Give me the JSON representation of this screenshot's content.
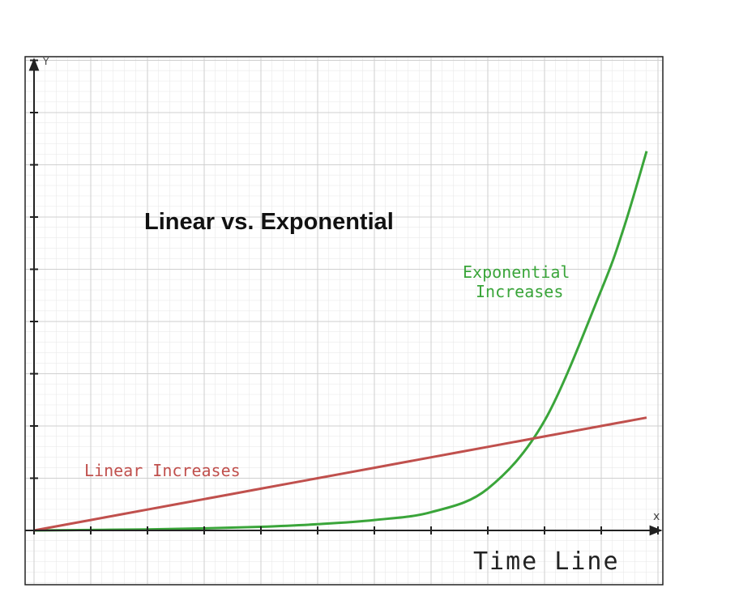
{
  "chart_data": {
    "type": "line",
    "title": "Linear vs. Exponential",
    "x_label": "Time Line",
    "x_axis_name": "x",
    "y_axis_name": "Y",
    "annotations": [
      [
        "Exponential",
        "Increases"
      ],
      [
        "Linear Increases"
      ]
    ],
    "x": [
      0,
      1,
      2,
      3,
      4,
      5,
      6,
      7,
      8,
      9,
      10,
      10.4,
      10.8
    ],
    "series": [
      {
        "color": "#3aa53a",
        "values": [
          0,
          0.01,
          0.02,
          0.04,
          0.07,
          0.12,
          0.2,
          0.35,
          0.8,
          2.1,
          4.6,
          5.8,
          7.26
        ]
      },
      {
        "color": "#c0504d",
        "values": [
          0,
          0.2,
          0.4,
          0.6,
          0.8,
          1.0,
          1.2,
          1.4,
          1.6,
          1.8,
          2.0,
          2.08,
          2.16
        ]
      }
    ],
    "xlim": [
      0,
      11.05
    ],
    "ylim": [
      0,
      9.04
    ],
    "xticks": [
      0,
      1,
      2,
      3,
      4,
      5,
      6,
      7,
      8,
      9,
      10,
      11
    ],
    "yticks": [
      0,
      1,
      2,
      3,
      4,
      5,
      6,
      7,
      8,
      9
    ],
    "grid": true
  }
}
